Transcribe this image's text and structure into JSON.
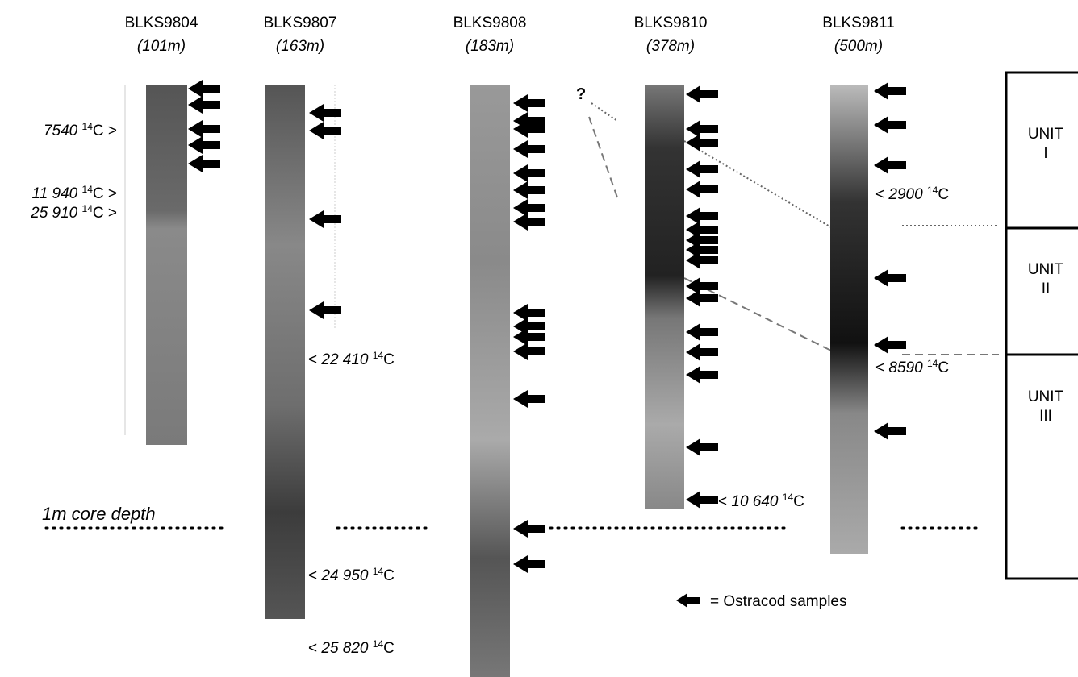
{
  "cores": [
    {
      "name": "BLKS9804",
      "depth": "(101m)",
      "dates": [
        {
          "age": "7540",
          "sup": "14",
          "tail": "C >"
        },
        {
          "age": "11 940",
          "sup": "14",
          "tail": "C >"
        },
        {
          "age": "25 910",
          "sup": "14",
          "tail": "C >"
        }
      ]
    },
    {
      "name": "BLKS9807",
      "depth": "(163m)",
      "dates": [
        {
          "lead": "<",
          "age": "22 410",
          "sup": "14",
          "tail": "C"
        },
        {
          "lead": "<",
          "age": "24 950",
          "sup": "14",
          "tail": "C"
        },
        {
          "lead": "<",
          "age": "25 820",
          "sup": "14",
          "tail": "C"
        }
      ]
    },
    {
      "name": "BLKS9808",
      "depth": "(183m)",
      "dates": []
    },
    {
      "name": "BLKS9810",
      "depth": "(378m)",
      "dates": [
        {
          "lead": "<",
          "age": "10 640",
          "sup": "14",
          "tail": "C"
        }
      ]
    },
    {
      "name": "BLKS9811",
      "depth": "(500m)",
      "dates": [
        {
          "lead": "<",
          "age": "2900",
          "sup": "14",
          "tail": "C"
        },
        {
          "lead": "<",
          "age": "8590",
          "sup": "14",
          "tail": "C"
        }
      ]
    }
  ],
  "units": [
    {
      "label": "UNIT",
      "number": "I"
    },
    {
      "label": "UNIT",
      "number": "II"
    },
    {
      "label": "UNIT",
      "number": "III"
    }
  ],
  "depth_marker": "1m core depth",
  "question": "?",
  "legend": "= Ostracod samples"
}
